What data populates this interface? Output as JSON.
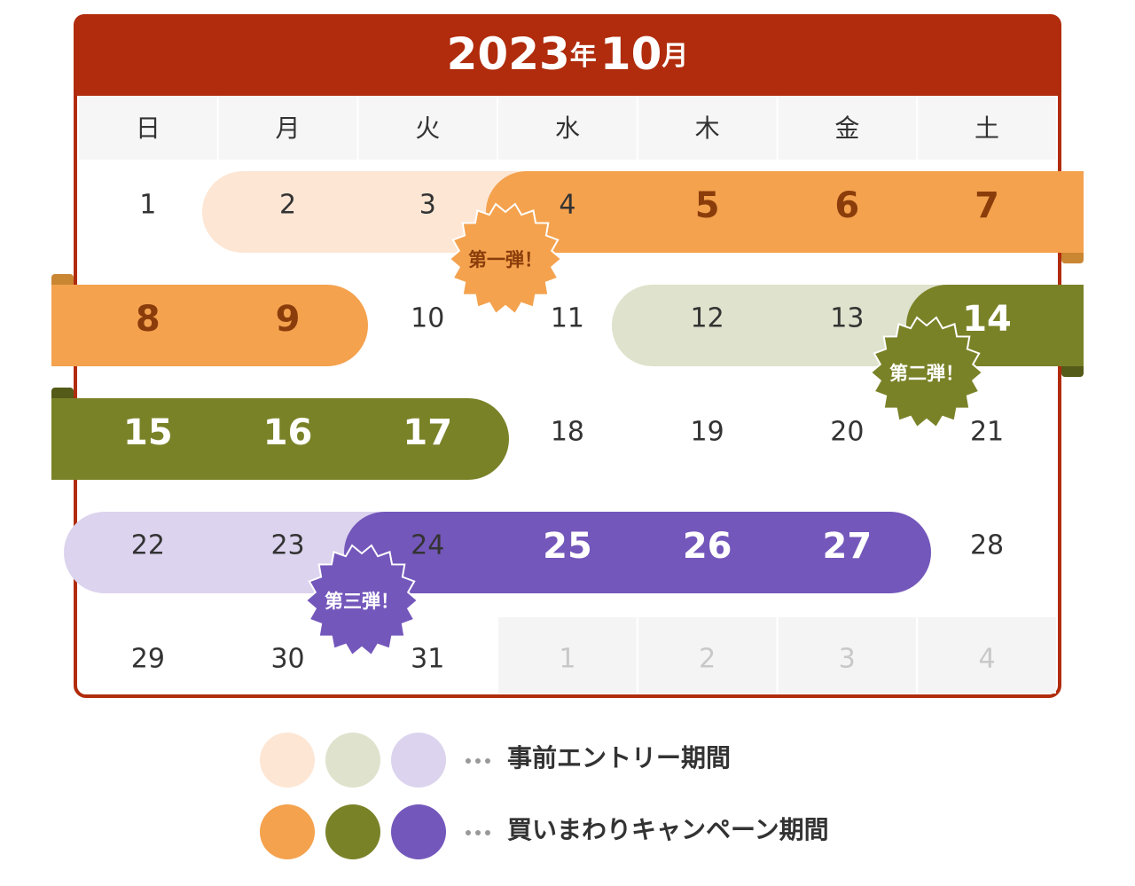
{
  "header": {
    "year": "2023",
    "year_unit": "年",
    "month": "10",
    "month_unit": "月"
  },
  "weekdays": [
    "日",
    "月",
    "火",
    "水",
    "木",
    "金",
    "土"
  ],
  "weeks": [
    [
      1,
      2,
      3,
      4,
      5,
      6,
      7
    ],
    [
      8,
      9,
      10,
      11,
      12,
      13,
      14
    ],
    [
      15,
      16,
      17,
      18,
      19,
      20,
      21
    ],
    [
      22,
      23,
      24,
      25,
      26,
      27,
      28
    ],
    [
      29,
      30,
      31,
      1,
      2,
      3,
      4
    ]
  ],
  "badges": [
    "第一弾！",
    "第二弾！",
    "第三弾！"
  ],
  "legend": [
    {
      "label": "事前エントリー期間"
    },
    {
      "label": "買いまわりキャンペーン期間"
    }
  ]
}
